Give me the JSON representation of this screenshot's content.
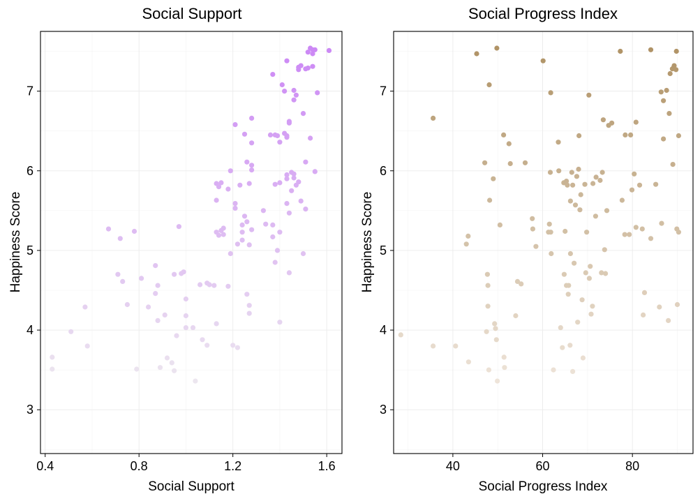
{
  "chart_data": [
    {
      "type": "scatter",
      "title": "Social Support",
      "xlabel": "Social Support",
      "ylabel": "Happiness Score",
      "xlim": [
        0.38,
        1.665
      ],
      "ylim": [
        2.45,
        7.75
      ],
      "xticks": [
        0.4,
        0.8,
        1.2,
        1.6
      ],
      "xtick_labels": [
        "0.4",
        "0.8",
        "1.2",
        "1.6"
      ],
      "yticks": [
        3,
        4,
        5,
        6,
        7
      ],
      "ytick_labels": [
        "3",
        "4",
        "5",
        "6",
        "7"
      ],
      "grid": true,
      "color_low": "#ece6ef",
      "color_high": "#cc88f5",
      "points": [
        [
          0.43,
          3.66
        ],
        [
          0.43,
          3.51
        ],
        [
          0.51,
          3.98
        ],
        [
          0.57,
          4.29
        ],
        [
          0.58,
          3.8
        ],
        [
          0.67,
          5.27
        ],
        [
          0.71,
          4.7
        ],
        [
          0.72,
          5.15
        ],
        [
          0.73,
          4.61
        ],
        [
          0.75,
          4.32
        ],
        [
          0.78,
          5.24
        ],
        [
          0.79,
          3.51
        ],
        [
          0.81,
          4.65
        ],
        [
          0.84,
          4.29
        ],
        [
          0.87,
          4.81
        ],
        [
          0.87,
          4.46
        ],
        [
          0.88,
          4.56
        ],
        [
          0.88,
          4.12
        ],
        [
          0.89,
          3.53
        ],
        [
          0.91,
          4.19
        ],
        [
          0.92,
          3.65
        ],
        [
          0.94,
          3.59
        ],
        [
          0.95,
          4.7
        ],
        [
          0.95,
          3.49
        ],
        [
          0.96,
          3.93
        ],
        [
          0.97,
          5.3
        ],
        [
          0.98,
          4.71
        ],
        [
          0.99,
          4.73
        ],
        [
          1.0,
          4.39
        ],
        [
          1.0,
          4.03
        ],
        [
          1.0,
          4.18
        ],
        [
          1.03,
          4.03
        ],
        [
          1.04,
          3.36
        ],
        [
          1.06,
          4.57
        ],
        [
          1.07,
          3.88
        ],
        [
          1.09,
          3.81
        ],
        [
          1.09,
          4.59
        ],
        [
          1.1,
          4.57
        ],
        [
          1.12,
          4.56
        ],
        [
          1.13,
          4.08
        ],
        [
          1.13,
          5.84
        ],
        [
          1.13,
          5.63
        ],
        [
          1.13,
          5.23
        ],
        [
          1.14,
          5.8
        ],
        [
          1.14,
          5.19
        ],
        [
          1.15,
          5.85
        ],
        [
          1.15,
          5.25
        ],
        [
          1.16,
          5.2
        ],
        [
          1.16,
          5.28
        ],
        [
          1.18,
          5.77
        ],
        [
          1.18,
          4.55
        ],
        [
          1.19,
          6.0
        ],
        [
          1.19,
          4.96
        ],
        [
          1.2,
          3.81
        ],
        [
          1.21,
          6.58
        ],
        [
          1.21,
          5.59
        ],
        [
          1.21,
          5.53
        ],
        [
          1.22,
          5.08
        ],
        [
          1.22,
          3.78
        ],
        [
          1.23,
          5.82
        ],
        [
          1.24,
          5.32
        ],
        [
          1.24,
          5.23
        ],
        [
          1.24,
          5.13
        ],
        [
          1.25,
          6.46
        ],
        [
          1.25,
          5.43
        ],
        [
          1.26,
          6.11
        ],
        [
          1.26,
          5.36
        ],
        [
          1.26,
          4.45
        ],
        [
          1.27,
          5.84
        ],
        [
          1.27,
          5.07
        ],
        [
          1.27,
          4.31
        ],
        [
          1.27,
          4.21
        ],
        [
          1.28,
          6.66
        ],
        [
          1.28,
          6.07
        ],
        [
          1.28,
          6.35
        ],
        [
          1.28,
          6.01
        ],
        [
          1.28,
          5.26
        ],
        [
          1.33,
          5.5
        ],
        [
          1.34,
          5.33
        ],
        [
          1.36,
          6.45
        ],
        [
          1.37,
          5.32
        ],
        [
          1.37,
          5.17
        ],
        [
          1.37,
          7.21
        ],
        [
          1.38,
          6.45
        ],
        [
          1.38,
          5.83
        ],
        [
          1.38,
          4.85
        ],
        [
          1.39,
          6.44
        ],
        [
          1.39,
          5.0
        ],
        [
          1.4,
          4.1
        ],
        [
          1.4,
          6.36
        ],
        [
          1.4,
          5.23
        ],
        [
          1.4,
          5.85
        ],
        [
          1.41,
          7.08
        ],
        [
          1.42,
          7.0
        ],
        [
          1.42,
          6.47
        ],
        [
          1.43,
          6.42
        ],
        [
          1.43,
          6.44
        ],
        [
          1.43,
          5.95
        ],
        [
          1.43,
          5.9
        ],
        [
          1.43,
          7.38
        ],
        [
          1.43,
          5.59
        ],
        [
          1.44,
          6.62
        ],
        [
          1.44,
          6.6
        ],
        [
          1.44,
          5.47
        ],
        [
          1.44,
          4.72
        ],
        [
          1.45,
          5.98
        ],
        [
          1.45,
          5.75
        ],
        [
          1.46,
          7.01
        ],
        [
          1.46,
          5.96
        ],
        [
          1.46,
          5.91
        ],
        [
          1.46,
          6.89
        ],
        [
          1.47,
          6.95
        ],
        [
          1.47,
          5.82
        ],
        [
          1.48,
          7.3
        ],
        [
          1.48,
          7.27
        ],
        [
          1.48,
          5.86
        ],
        [
          1.49,
          5.62
        ],
        [
          1.49,
          7.32
        ],
        [
          1.5,
          6.72
        ],
        [
          1.5,
          4.96
        ],
        [
          1.51,
          7.28
        ],
        [
          1.51,
          6.11
        ],
        [
          1.51,
          5.52
        ],
        [
          1.52,
          7.49
        ],
        [
          1.52,
          7.29
        ],
        [
          1.53,
          7.54
        ],
        [
          1.53,
          6.41
        ],
        [
          1.54,
          7.47
        ],
        [
          1.54,
          7.52
        ],
        [
          1.54,
          7.31
        ],
        [
          1.55,
          7.52
        ],
        [
          1.55,
          5.99
        ],
        [
          1.56,
          6.98
        ],
        [
          1.61,
          7.51
        ]
      ]
    },
    {
      "type": "scatter",
      "title": "Social Progress Index",
      "xlabel": "Social Progress Index",
      "ylabel": "Happiness Score",
      "xlim": [
        26.8,
        93.5
      ],
      "ylim": [
        2.45,
        7.75
      ],
      "xticks": [
        40,
        60,
        80
      ],
      "xtick_labels": [
        "40",
        "60",
        "80"
      ],
      "yticks": [
        3,
        4,
        5,
        6,
        7
      ],
      "ytick_labels": [
        "3",
        "4",
        "5",
        "6",
        "7"
      ],
      "grid": true,
      "color_low": "#eee4d9",
      "color_high": "#b09366",
      "points": [
        [
          28.4,
          3.94
        ],
        [
          35.6,
          6.66
        ],
        [
          35.6,
          3.8
        ],
        [
          40.6,
          3.8
        ],
        [
          43.0,
          5.08
        ],
        [
          43.4,
          5.18
        ],
        [
          43.5,
          3.6
        ],
        [
          45.3,
          7.47
        ],
        [
          47.1,
          6.1
        ],
        [
          47.5,
          3.98
        ],
        [
          47.7,
          4.7
        ],
        [
          47.8,
          4.56
        ],
        [
          47.8,
          4.3
        ],
        [
          48.0,
          3.5
        ],
        [
          48.1,
          7.08
        ],
        [
          48.2,
          5.63
        ],
        [
          49.0,
          5.9
        ],
        [
          49.3,
          4.08
        ],
        [
          49.5,
          4.02
        ],
        [
          49.7,
          3.88
        ],
        [
          49.8,
          7.54
        ],
        [
          49.9,
          3.36
        ],
        [
          50.5,
          5.32
        ],
        [
          51.3,
          6.45
        ],
        [
          51.4,
          3.66
        ],
        [
          51.5,
          3.53
        ],
        [
          52.5,
          6.34
        ],
        [
          52.8,
          6.09
        ],
        [
          54.0,
          4.18
        ],
        [
          54.4,
          4.61
        ],
        [
          55.2,
          4.58
        ],
        [
          56.1,
          6.1
        ],
        [
          57.7,
          5.4
        ],
        [
          57.8,
          5.27
        ],
        [
          58.5,
          5.05
        ],
        [
          60.1,
          7.38
        ],
        [
          61.3,
          5.23
        ],
        [
          61.5,
          5.33
        ],
        [
          61.7,
          5.98
        ],
        [
          61.8,
          6.98
        ],
        [
          61.8,
          5.23
        ],
        [
          61.9,
          4.96
        ],
        [
          62.4,
          3.5
        ],
        [
          63.5,
          6.36
        ],
        [
          63.6,
          6.0
        ],
        [
          64.0,
          4.03
        ],
        [
          64.4,
          3.78
        ],
        [
          64.7,
          5.85
        ],
        [
          64.8,
          4.7
        ],
        [
          65.0,
          5.24
        ],
        [
          65.3,
          4.56
        ],
        [
          65.3,
          5.87
        ],
        [
          65.5,
          5.82
        ],
        [
          65.7,
          4.45
        ],
        [
          65.8,
          4.56
        ],
        [
          66.1,
          3.81
        ],
        [
          66.2,
          4.96
        ],
        [
          66.2,
          5.62
        ],
        [
          66.5,
          5.98
        ],
        [
          66.7,
          5.82
        ],
        [
          66.7,
          3.48
        ],
        [
          67.0,
          4.84
        ],
        [
          67.3,
          5.57
        ],
        [
          67.6,
          5.93
        ],
        [
          67.8,
          4.1
        ],
        [
          68.0,
          6.02
        ],
        [
          68.1,
          6.44
        ],
        [
          68.3,
          5.51
        ],
        [
          68.5,
          5.7
        ],
        [
          68.8,
          4.38
        ],
        [
          69.0,
          3.65
        ],
        [
          69.4,
          5.83
        ],
        [
          69.6,
          4.72
        ],
        [
          69.8,
          5.23
        ],
        [
          70.3,
          6.95
        ],
        [
          70.4,
          4.65
        ],
        [
          70.6,
          4.8
        ],
        [
          70.8,
          4.2
        ],
        [
          71.1,
          4.3
        ],
        [
          71.2,
          5.84
        ],
        [
          71.8,
          5.43
        ],
        [
          71.9,
          5.92
        ],
        [
          72.8,
          5.88
        ],
        [
          73.1,
          4.72
        ],
        [
          73.3,
          5.98
        ],
        [
          73.5,
          6.64
        ],
        [
          73.8,
          5.01
        ],
        [
          74.0,
          4.71
        ],
        [
          74.3,
          5.5
        ],
        [
          74.7,
          6.57
        ],
        [
          75.4,
          6.6
        ],
        [
          77.3,
          7.5
        ],
        [
          77.7,
          5.63
        ],
        [
          78.3,
          5.2
        ],
        [
          78.4,
          6.45
        ],
        [
          79.3,
          5.2
        ],
        [
          79.6,
          6.45
        ],
        [
          79.9,
          5.76
        ],
        [
          80.4,
          5.96
        ],
        [
          80.8,
          6.61
        ],
        [
          80.8,
          5.29
        ],
        [
          81.6,
          5.82
        ],
        [
          82.2,
          5.27
        ],
        [
          82.4,
          4.19
        ],
        [
          82.7,
          4.47
        ],
        [
          84.1,
          7.52
        ],
        [
          84.1,
          5.15
        ],
        [
          85.2,
          5.83
        ],
        [
          86.0,
          4.29
        ],
        [
          86.4,
          6.99
        ],
        [
          86.5,
          5.34
        ],
        [
          86.9,
          6.4
        ],
        [
          86.9,
          6.88
        ],
        [
          87.6,
          7.01
        ],
        [
          88.0,
          4.12
        ],
        [
          88.2,
          6.72
        ],
        [
          88.4,
          7.22
        ],
        [
          88.9,
          7.28
        ],
        [
          89.0,
          6.08
        ],
        [
          89.1,
          7.29
        ],
        [
          89.3,
          7.32
        ],
        [
          89.7,
          7.27
        ],
        [
          89.8,
          7.5
        ],
        [
          89.9,
          5.27
        ],
        [
          90.0,
          4.32
        ],
        [
          90.3,
          5.23
        ],
        [
          90.3,
          6.44
        ]
      ]
    }
  ]
}
